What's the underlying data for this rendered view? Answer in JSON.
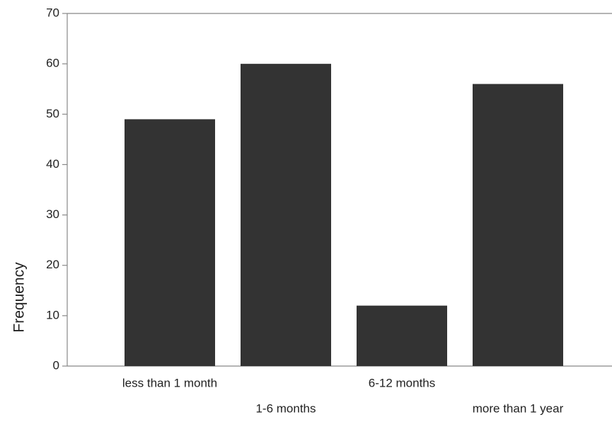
{
  "chart_data": {
    "type": "bar",
    "y_label": "Frequency",
    "categories": [
      "less than 1 month",
      "1-6 months",
      "6-12 months",
      "more than 1 year"
    ],
    "values": [
      49,
      60,
      12,
      56
    ],
    "color": "#333333",
    "ylim": [
      0,
      70
    ],
    "yticks": [
      0,
      10,
      20,
      30,
      40,
      50,
      60,
      70
    ]
  }
}
